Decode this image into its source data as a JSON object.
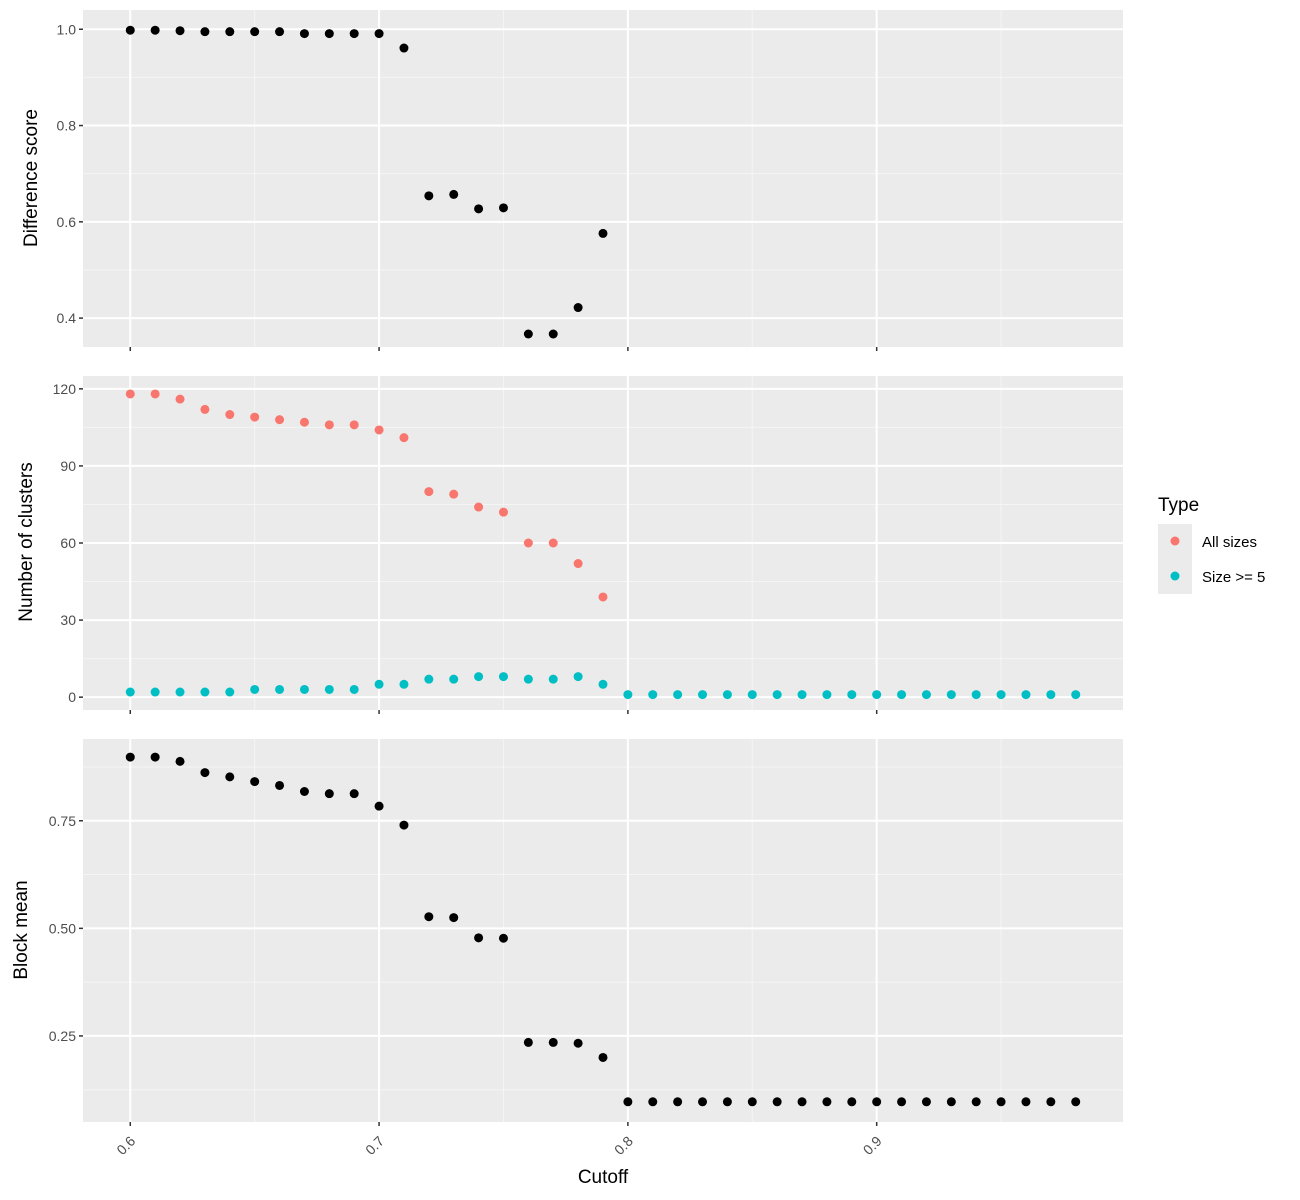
{
  "chart_data": [
    {
      "type": "scatter",
      "ylabel": "Difference score",
      "ylim": [
        0.34,
        1.04
      ],
      "y_ticks": [
        0.4,
        0.6,
        0.8,
        1.0
      ],
      "y_tick_labels": [
        "0.4",
        "0.6",
        "0.8",
        "1.0"
      ],
      "x": [
        0.6,
        0.61,
        0.62,
        0.63,
        0.64,
        0.65,
        0.66,
        0.67,
        0.68,
        0.69,
        0.7,
        0.71,
        0.72,
        0.73,
        0.74,
        0.75,
        0.76,
        0.77,
        0.78,
        0.79
      ],
      "series": [
        {
          "values": [
            0.998,
            0.998,
            0.997,
            0.995,
            0.995,
            0.995,
            0.995,
            0.991,
            0.991,
            0.991,
            0.991,
            0.961,
            0.654,
            0.657,
            0.627,
            0.629,
            0.367,
            0.367,
            0.422,
            0.576
          ],
          "color": "#000000"
        }
      ]
    },
    {
      "type": "scatter",
      "ylabel": "Number of clusters",
      "ylim": [
        -5,
        125
      ],
      "y_ticks": [
        0,
        30,
        60,
        90,
        120
      ],
      "y_tick_labels": [
        "0",
        "30",
        "60",
        "90",
        "120"
      ],
      "series": [
        {
          "name": "All sizes",
          "color": "#F8766D",
          "x": [
            0.6,
            0.61,
            0.62,
            0.63,
            0.64,
            0.65,
            0.66,
            0.67,
            0.68,
            0.69,
            0.7,
            0.71,
            0.72,
            0.73,
            0.74,
            0.75,
            0.76,
            0.77,
            0.78,
            0.79
          ],
          "values": [
            118,
            118,
            116,
            112,
            110,
            109,
            108,
            107,
            106,
            106,
            104,
            101,
            80,
            79,
            74,
            72,
            60,
            60,
            52,
            39
          ]
        },
        {
          "name": "Size >= 5",
          "color": "#00BFC4",
          "x": [
            0.6,
            0.61,
            0.62,
            0.63,
            0.64,
            0.65,
            0.66,
            0.67,
            0.68,
            0.69,
            0.7,
            0.71,
            0.72,
            0.73,
            0.74,
            0.75,
            0.76,
            0.77,
            0.78,
            0.79,
            0.8,
            0.81,
            0.82,
            0.83,
            0.84,
            0.85,
            0.86,
            0.87,
            0.88,
            0.89,
            0.9,
            0.91,
            0.92,
            0.93,
            0.94,
            0.95,
            0.96,
            0.97,
            0.98
          ],
          "values": [
            2,
            2,
            2,
            2,
            2,
            3,
            3,
            3,
            3,
            3,
            5,
            5,
            7,
            7,
            8,
            8,
            7,
            7,
            8,
            5,
            1,
            1,
            1,
            1,
            1,
            1,
            1,
            1,
            1,
            1,
            1,
            1,
            1,
            1,
            1,
            1,
            1,
            1,
            1
          ]
        }
      ],
      "legend": {
        "title": "Type",
        "placement": "right",
        "entries": [
          "All sizes",
          "Size >= 5"
        ]
      }
    },
    {
      "type": "scatter",
      "ylabel": "Block mean",
      "xlabel": "Cutoff",
      "ylim": [
        0.05,
        0.94
      ],
      "y_ticks": [
        0.25,
        0.5,
        0.75
      ],
      "y_tick_labels": [
        "0.25",
        "0.50",
        "0.75"
      ],
      "x": [
        0.6,
        0.61,
        0.62,
        0.63,
        0.64,
        0.65,
        0.66,
        0.67,
        0.68,
        0.69,
        0.7,
        0.71,
        0.72,
        0.73,
        0.74,
        0.75,
        0.76,
        0.77,
        0.78,
        0.79,
        0.8,
        0.81,
        0.82,
        0.83,
        0.84,
        0.85,
        0.86,
        0.87,
        0.88,
        0.89,
        0.9,
        0.91,
        0.92,
        0.93,
        0.94,
        0.95,
        0.96,
        0.97,
        0.98
      ],
      "series": [
        {
          "values": [
            0.898,
            0.898,
            0.888,
            0.862,
            0.852,
            0.841,
            0.832,
            0.818,
            0.813,
            0.813,
            0.784,
            0.74,
            0.527,
            0.525,
            0.478,
            0.477,
            0.235,
            0.235,
            0.233,
            0.2,
            0.097,
            0.097,
            0.097,
            0.097,
            0.097,
            0.097,
            0.097,
            0.097,
            0.097,
            0.097,
            0.097,
            0.097,
            0.097,
            0.097,
            0.097,
            0.097,
            0.097,
            0.097,
            0.097
          ],
          "color": "#000000"
        }
      ]
    }
  ],
  "x_axis": {
    "xlim": [
      0.581,
      0.999
    ],
    "ticks": [
      0.6,
      0.7,
      0.8,
      0.9
    ],
    "tick_labels": [
      "0.6",
      "0.7",
      "0.8",
      "0.9"
    ],
    "label": "Cutoff"
  },
  "style": {
    "panel_background": "#EBEBEB",
    "grid_major": "#FFFFFF",
    "grid_minor": "#F5F5F5",
    "tick_color": "#333333"
  }
}
